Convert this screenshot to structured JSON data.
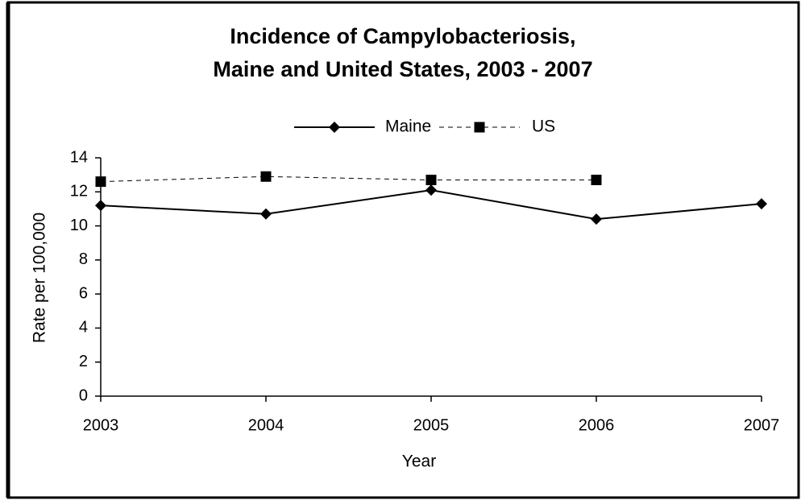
{
  "chart_data": {
    "type": "line",
    "title": [
      "Incidence of Campylobacteriosis,",
      "Maine and United States, 2003 - 2007"
    ],
    "x_label": "Year",
    "y_label": "Rate per 100,000",
    "categories": [
      "2003",
      "2004",
      "2005",
      "2006",
      "2007"
    ],
    "series": [
      {
        "name": "Maine",
        "color": "#000000",
        "dash": false,
        "marker": "diamond",
        "values": [
          11.2,
          10.7,
          12.1,
          10.4,
          11.3
        ]
      },
      {
        "name": "US",
        "color": "#000000",
        "dash": true,
        "marker": "square",
        "values": [
          12.6,
          12.9,
          12.7,
          12.7,
          null
        ]
      }
    ],
    "ylim": [
      0,
      14
    ],
    "yticks": [
      0,
      2,
      4,
      6,
      8,
      10,
      12,
      14
    ],
    "grid": false,
    "legend": "top"
  }
}
